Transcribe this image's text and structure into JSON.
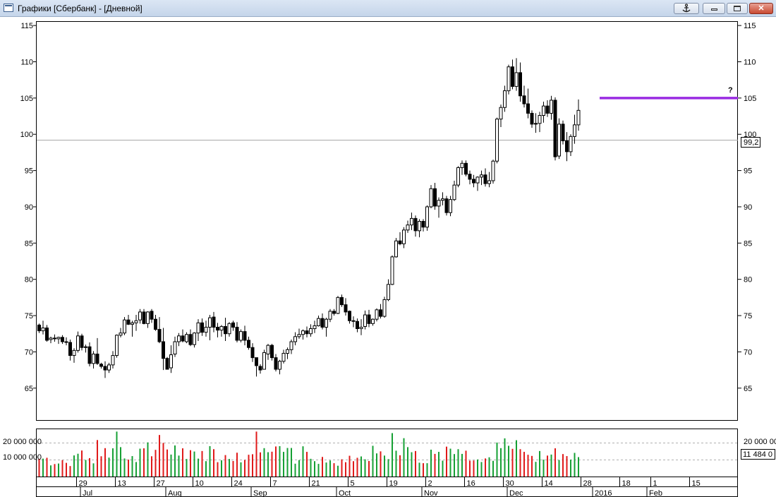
{
  "window": {
    "title": "Графики [Сбербанк] - [Дневной]",
    "icon": "chart-window-icon",
    "anchor_icon": "anchor-icon",
    "close_label": "✕"
  },
  "colors": {
    "frame": "#000000",
    "background": "#ffffff",
    "candle_up": "#ffffff",
    "candle_down": "#000000",
    "resistance_line": "#9a2be2",
    "current_price_line": "#a9a9a9",
    "volume_up": "#16a034",
    "volume_down": "#e01a1a",
    "volume_grid": "#b0b0b0"
  },
  "price_axis": {
    "min": 60.5,
    "max": 115.5,
    "ticks": [
      "115",
      "110",
      "105",
      "100",
      "95",
      "90",
      "85",
      "80",
      "75",
      "70",
      "65"
    ],
    "current_price_label": "99,2",
    "current_price": 99.2
  },
  "volume_axis": {
    "tick_labels": [
      "20 000 000",
      "10 000 000"
    ],
    "tick_values": [
      20000000,
      10000000
    ],
    "max": 28000000,
    "current_volume_label": "11 484 0"
  },
  "annotations": {
    "resistance_level": 105,
    "resistance_start_bar": 145,
    "question_mark": "?"
  },
  "time_axis": {
    "day_labels": [
      {
        "bar": 10,
        "text": "29"
      },
      {
        "bar": 20,
        "text": "13"
      },
      {
        "bar": 30,
        "text": "27"
      },
      {
        "bar": 40,
        "text": "10"
      },
      {
        "bar": 50,
        "text": "24"
      },
      {
        "bar": 60,
        "text": "7"
      },
      {
        "bar": 70,
        "text": "21"
      },
      {
        "bar": 80,
        "text": "5"
      },
      {
        "bar": 90,
        "text": "19"
      },
      {
        "bar": 100,
        "text": "2"
      },
      {
        "bar": 110,
        "text": "16"
      },
      {
        "bar": 120,
        "text": "30"
      },
      {
        "bar": 130,
        "text": "14"
      },
      {
        "bar": 140,
        "text": "28"
      },
      {
        "bar": 150,
        "text": "18"
      },
      {
        "bar": 158,
        "text": "1"
      },
      {
        "bar": 168,
        "text": "15"
      }
    ],
    "month_labels": [
      {
        "bar": 11,
        "text": "Jul"
      },
      {
        "bar": 33,
        "text": "Aug"
      },
      {
        "bar": 55,
        "text": "Sep"
      },
      {
        "bar": 77,
        "text": "Oct"
      },
      {
        "bar": 99,
        "text": "Nov"
      },
      {
        "bar": 121,
        "text": "Dec"
      },
      {
        "bar": 143,
        "text": "2016"
      },
      {
        "bar": 157,
        "text": "Feb"
      }
    ]
  },
  "chart_data": {
    "type": "candlestick",
    "instrument": "Сбербанк",
    "interval": "Дневной",
    "bars": [
      [
        73.7,
        73.9,
        72.6,
        72.9,
        10.5
      ],
      [
        72.9,
        74.3,
        72.4,
        73.3,
        10.6
      ],
      [
        73.3,
        73.7,
        71.4,
        71.6,
        11.1
      ],
      [
        71.7,
        72.1,
        71.2,
        71.9,
        6.6
      ],
      [
        71.9,
        72.4,
        71.4,
        71.8,
        7.4
      ],
      [
        71.8,
        72.1,
        71.1,
        72.0,
        7.7
      ],
      [
        72.0,
        72.3,
        71.1,
        71.4,
        9.7
      ],
      [
        71.4,
        72.0,
        70.9,
        71.3,
        8.1
      ],
      [
        71.3,
        71.7,
        68.8,
        69.5,
        6.2
      ],
      [
        69.5,
        70.5,
        68.5,
        70.2,
        12.5
      ],
      [
        70.2,
        72.8,
        69.9,
        72.2,
        13.5
      ],
      [
        72.2,
        72.5,
        70.2,
        70.6,
        15.4
      ],
      [
        70.6,
        71.0,
        69.9,
        70.7,
        9.8
      ],
      [
        70.7,
        71.3,
        68.0,
        68.4,
        10.9
      ],
      [
        68.4,
        70.1,
        67.7,
        69.7,
        7.8
      ],
      [
        69.7,
        71.9,
        68.2,
        68.4,
        21.6
      ],
      [
        68.3,
        68.5,
        67.7,
        68.0,
        12.0
      ],
      [
        68.0,
        68.7,
        66.4,
        67.5,
        16.8
      ],
      [
        67.5,
        68.5,
        67.1,
        68.2,
        11.2
      ],
      [
        68.2,
        70.1,
        67.7,
        69.5,
        16.7
      ],
      [
        69.5,
        72.4,
        69.2,
        72.3,
        26.6
      ],
      [
        72.3,
        73.3,
        72.0,
        72.6,
        17.4
      ],
      [
        72.6,
        74.8,
        72.3,
        74.4,
        10.7
      ],
      [
        74.4,
        75.1,
        73.7,
        73.8,
        10.0
      ],
      [
        73.8,
        74.3,
        72.1,
        74.0,
        12.1
      ],
      [
        74.0,
        75.1,
        72.9,
        74.3,
        8.6
      ],
      [
        74.4,
        75.9,
        73.9,
        75.5,
        16.5
      ],
      [
        75.5,
        75.9,
        73.8,
        73.9,
        16.7
      ],
      [
        73.9,
        75.6,
        73.3,
        75.5,
        20.2
      ],
      [
        75.6,
        75.9,
        74.0,
        74.5,
        12.0
      ],
      [
        74.5,
        75.1,
        72.9,
        73.1,
        15.8
      ],
      [
        73.1,
        74.8,
        71.2,
        71.4,
        24.6
      ],
      [
        71.4,
        73.3,
        67.5,
        69.1,
        19.9
      ],
      [
        69.1,
        69.3,
        67.6,
        67.6,
        16.0
      ],
      [
        67.8,
        70.9,
        67.1,
        69.6,
        13.0
      ],
      [
        69.7,
        72.1,
        69.3,
        71.4,
        18.4
      ],
      [
        71.4,
        72.6,
        70.8,
        72.2,
        12.4
      ],
      [
        72.2,
        73.1,
        71.3,
        71.5,
        16.7
      ],
      [
        71.4,
        72.7,
        71.2,
        72.4,
        10.4
      ],
      [
        72.4,
        73.1,
        70.8,
        71.0,
        15.6
      ],
      [
        71.0,
        72.7,
        70.6,
        72.6,
        14.8
      ],
      [
        72.6,
        74.5,
        71.5,
        74.0,
        10.6
      ],
      [
        74.0,
        74.6,
        72.2,
        72.7,
        15.1
      ],
      [
        72.7,
        74.3,
        72.1,
        73.4,
        9.1
      ],
      [
        73.4,
        75.1,
        71.6,
        74.7,
        18.0
      ],
      [
        74.8,
        75.5,
        72.7,
        73.4,
        16.2
      ],
      [
        73.4,
        74.0,
        72.0,
        73.0,
        8.5
      ],
      [
        73.0,
        73.7,
        72.1,
        73.5,
        9.6
      ],
      [
        73.5,
        74.7,
        71.5,
        72.5,
        12.7
      ],
      [
        72.5,
        74.1,
        72.1,
        73.9,
        10.4
      ],
      [
        74.0,
        74.3,
        72.9,
        73.4,
        9.2
      ],
      [
        73.4,
        74.1,
        71.3,
        71.6,
        14.1
      ],
      [
        71.6,
        73.1,
        71.3,
        72.8,
        8.4
      ],
      [
        72.8,
        73.6,
        70.9,
        71.6,
        9.8
      ],
      [
        71.6,
        72.1,
        70.3,
        70.6,
        12.9
      ],
      [
        70.6,
        71.2,
        68.6,
        69.2,
        13.2
      ],
      [
        69.2,
        69.2,
        66.6,
        68.1,
        26.6
      ],
      [
        68.0,
        68.3,
        67.0,
        67.5,
        14.3
      ],
      [
        67.6,
        70.3,
        67.6,
        69.9,
        16.8
      ],
      [
        69.7,
        71.1,
        68.9,
        70.9,
        14.4
      ],
      [
        70.9,
        71.1,
        68.8,
        69.2,
        14.7
      ],
      [
        69.2,
        69.7,
        67.3,
        67.6,
        17.8
      ],
      [
        67.6,
        68.9,
        66.9,
        68.7,
        18.0
      ],
      [
        68.7,
        70.3,
        68.4,
        69.8,
        14.6
      ],
      [
        69.8,
        70.6,
        69.0,
        70.3,
        16.9
      ],
      [
        70.3,
        71.7,
        69.7,
        71.4,
        16.9
      ],
      [
        71.4,
        72.7,
        70.9,
        72.1,
        7.6
      ],
      [
        72.1,
        73.2,
        71.8,
        72.4,
        9.7
      ],
      [
        72.4,
        73.1,
        71.7,
        72.9,
        17.9
      ],
      [
        72.9,
        73.5,
        72.0,
        72.5,
        14.6
      ],
      [
        72.5,
        73.8,
        72.1,
        73.2,
        10.5
      ],
      [
        73.2,
        74.3,
        72.6,
        73.6,
        9.1
      ],
      [
        73.6,
        75.0,
        73.5,
        74.6,
        7.5
      ],
      [
        74.6,
        75.3,
        73.1,
        73.4,
        11.6
      ],
      [
        73.4,
        74.7,
        72.1,
        74.5,
        8.3
      ],
      [
        74.5,
        75.9,
        74.1,
        75.6,
        9.5
      ],
      [
        75.6,
        75.9,
        75.0,
        75.3,
        7.9
      ],
      [
        75.3,
        77.7,
        75.2,
        77.5,
        6.4
      ],
      [
        77.5,
        77.9,
        76.2,
        76.5,
        10.2
      ],
      [
        76.5,
        77.4,
        75.0,
        75.5,
        8.5
      ],
      [
        75.6,
        75.7,
        73.9,
        74.3,
        12.3
      ],
      [
        74.3,
        74.9,
        73.4,
        74.2,
        9.1
      ],
      [
        74.2,
        74.6,
        72.7,
        73.2,
        11.1
      ],
      [
        73.2,
        74.5,
        72.3,
        73.4,
        11.9
      ],
      [
        73.5,
        75.7,
        73.1,
        75.1,
        10.2
      ],
      [
        75.1,
        75.8,
        73.4,
        73.9,
        9.2
      ],
      [
        73.9,
        74.6,
        73.6,
        74.5,
        18.2
      ],
      [
        74.5,
        76.0,
        74.2,
        75.8,
        13.7
      ],
      [
        75.8,
        76.6,
        74.6,
        74.9,
        14.9
      ],
      [
        74.9,
        77.6,
        74.7,
        77.2,
        12.4
      ],
      [
        77.2,
        80.0,
        77.0,
        79.3,
        10.3
      ],
      [
        79.3,
        83.3,
        79.2,
        83.1,
        25.7
      ],
      [
        83.1,
        85.7,
        83.0,
        85.3,
        15.3
      ],
      [
        85.3,
        86.5,
        84.7,
        84.9,
        12.6
      ],
      [
        84.9,
        87.2,
        84.3,
        86.8,
        22.7
      ],
      [
        86.8,
        88.1,
        86.4,
        87.5,
        17.4
      ],
      [
        87.5,
        89.2,
        86.8,
        88.4,
        14.4
      ],
      [
        88.4,
        88.8,
        85.9,
        86.7,
        15.1
      ],
      [
        86.7,
        88.3,
        85.8,
        88.0,
        8.2
      ],
      [
        88.0,
        88.3,
        86.6,
        87.2,
        7.9
      ],
      [
        87.2,
        90.2,
        86.7,
        90.0,
        7.9
      ],
      [
        90.0,
        93.0,
        89.8,
        92.5,
        15.9
      ],
      [
        92.5,
        93.3,
        89.6,
        90.1,
        13.4
      ],
      [
        90.1,
        91.3,
        88.5,
        90.9,
        14.6
      ],
      [
        90.9,
        92.0,
        90.2,
        91.1,
        9.4
      ],
      [
        91.1,
        91.5,
        88.8,
        89.2,
        17.7
      ],
      [
        89.2,
        91.5,
        88.7,
        91.0,
        16.5
      ],
      [
        91.0,
        93.6,
        90.8,
        93.0,
        13.3
      ],
      [
        93.0,
        95.6,
        92.7,
        95.4,
        16.2
      ],
      [
        95.4,
        96.4,
        94.4,
        96.0,
        13.4
      ],
      [
        96.0,
        96.4,
        94.2,
        94.5,
        15.3
      ],
      [
        94.5,
        95.0,
        93.1,
        93.8,
        9.4
      ],
      [
        93.8,
        94.4,
        92.7,
        93.3,
        9.5
      ],
      [
        93.3,
        94.2,
        92.2,
        94.1,
        10.1
      ],
      [
        94.1,
        95.0,
        93.0,
        94.4,
        8.6
      ],
      [
        94.4,
        95.3,
        92.8,
        93.2,
        10.7
      ],
      [
        93.2,
        94.8,
        92.7,
        93.6,
        11.4
      ],
      [
        93.6,
        96.5,
        93.2,
        96.3,
        9.3
      ],
      [
        96.3,
        102.3,
        96.0,
        102.1,
        20.1
      ],
      [
        102.1,
        104.1,
        101.0,
        103.7,
        16.8
      ],
      [
        103.7,
        106.7,
        103.1,
        106.0,
        22.6
      ],
      [
        106.0,
        109.6,
        105.5,
        109.3,
        18.2
      ],
      [
        109.3,
        110.3,
        106.2,
        106.6,
        16.4
      ],
      [
        106.6,
        110.5,
        106.0,
        108.5,
        21.5
      ],
      [
        108.5,
        109.9,
        104.5,
        105.3,
        16.2
      ],
      [
        105.3,
        106.7,
        103.7,
        104.2,
        14.6
      ],
      [
        104.2,
        106.3,
        102.2,
        102.9,
        12.9
      ],
      [
        102.9,
        103.3,
        100.9,
        101.4,
        12.2
      ],
      [
        101.4,
        102.9,
        100.2,
        101.5,
        8.7
      ],
      [
        101.5,
        103.1,
        100.3,
        102.6,
        15.1
      ],
      [
        102.6,
        104.5,
        101.6,
        103.9,
        10.0
      ],
      [
        103.9,
        104.7,
        102.4,
        102.9,
        12.4
      ],
      [
        102.9,
        105.3,
        102.0,
        104.7,
        13.0
      ],
      [
        104.7,
        105.1,
        96.4,
        96.9,
        16.7
      ],
      [
        97.0,
        102.2,
        96.6,
        101.4,
        9.7
      ],
      [
        101.4,
        101.9,
        98.6,
        99.1,
        13.3
      ],
      [
        99.1,
        100.3,
        96.3,
        97.6,
        12.1
      ],
      [
        97.6,
        100.0,
        97.0,
        99.7,
        10.0
      ],
      [
        99.7,
        102.7,
        98.7,
        101.3,
        14.0
      ],
      [
        101.3,
        104.8,
        100.5,
        103.3,
        11.5
      ]
    ]
  }
}
